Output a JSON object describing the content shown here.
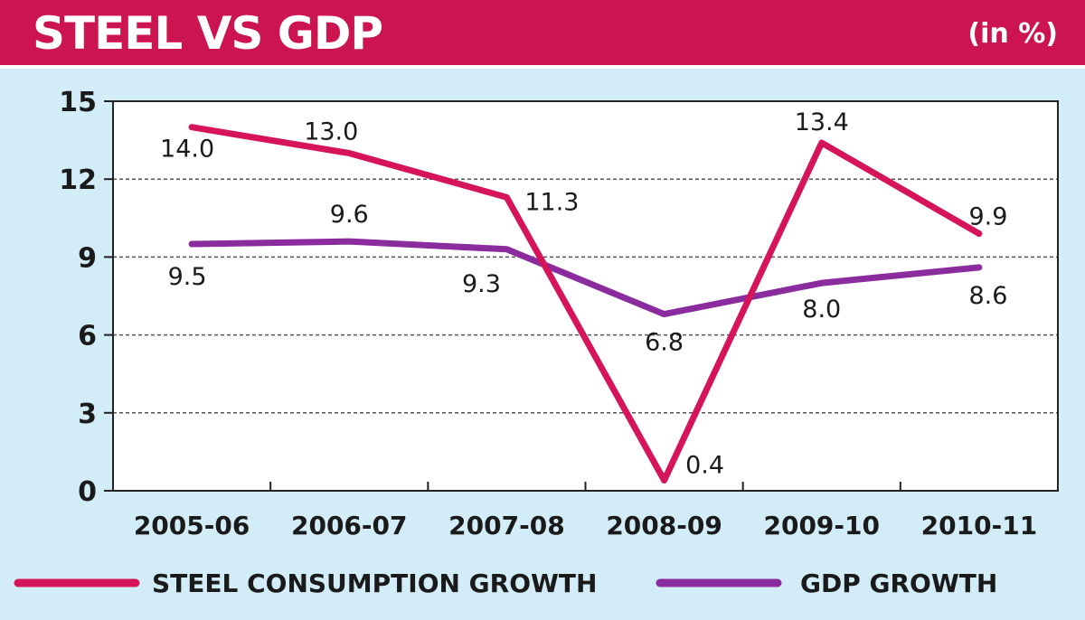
{
  "header": {
    "title": "STEEL VS GDP",
    "unit": "(in %)"
  },
  "colors": {
    "header_bg": "#cc1450",
    "background": "#d2ecf8",
    "plot_bg": "#ffffff",
    "steel": "#d6145a",
    "gdp": "#8b2c9e"
  },
  "chart_data": {
    "type": "line",
    "categories": [
      "2005-06",
      "2006-07",
      "2007-08",
      "2008-09",
      "2009-10",
      "2010-11"
    ],
    "ylim": [
      0,
      15
    ],
    "yticks": [
      "0",
      "3",
      "6",
      "9",
      "12",
      "15"
    ],
    "grid": true,
    "legend_position": "bottom",
    "series": [
      {
        "name": "STEEL CONSUMPTION GROWTH",
        "values": [
          14.0,
          13.0,
          11.3,
          0.4,
          13.4,
          9.9
        ],
        "labels": [
          "14.0",
          "13.0",
          "11.3",
          "0.4",
          "13.4",
          "9.9"
        ]
      },
      {
        "name": "GDP GROWTH",
        "values": [
          9.5,
          9.6,
          9.3,
          6.8,
          8.0,
          8.6
        ],
        "labels": [
          "9.5",
          "9.6",
          "9.3",
          "6.8",
          "8.0",
          "8.6"
        ]
      }
    ]
  }
}
